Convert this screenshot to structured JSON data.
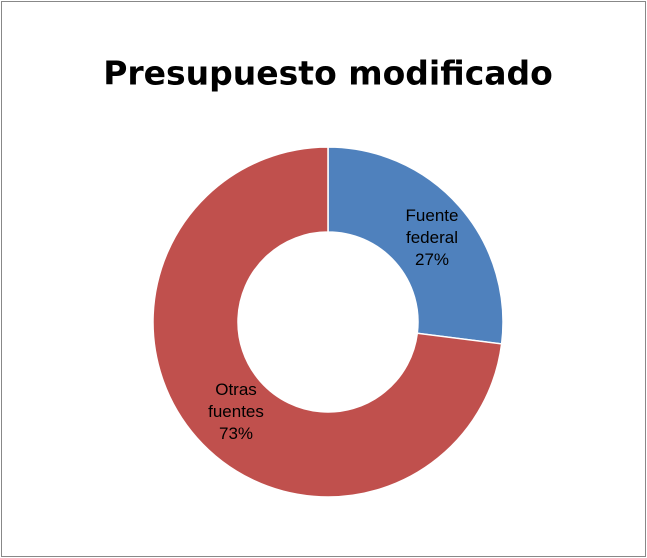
{
  "chart_data": {
    "type": "donut",
    "title": "Presupuesto modificado",
    "categories": [
      "Fuente federal",
      "Otras fuentes"
    ],
    "values": [
      27,
      73
    ],
    "value_labels": [
      "27%",
      "73%"
    ],
    "colors": [
      "#4f81bd",
      "#c0504d"
    ]
  }
}
